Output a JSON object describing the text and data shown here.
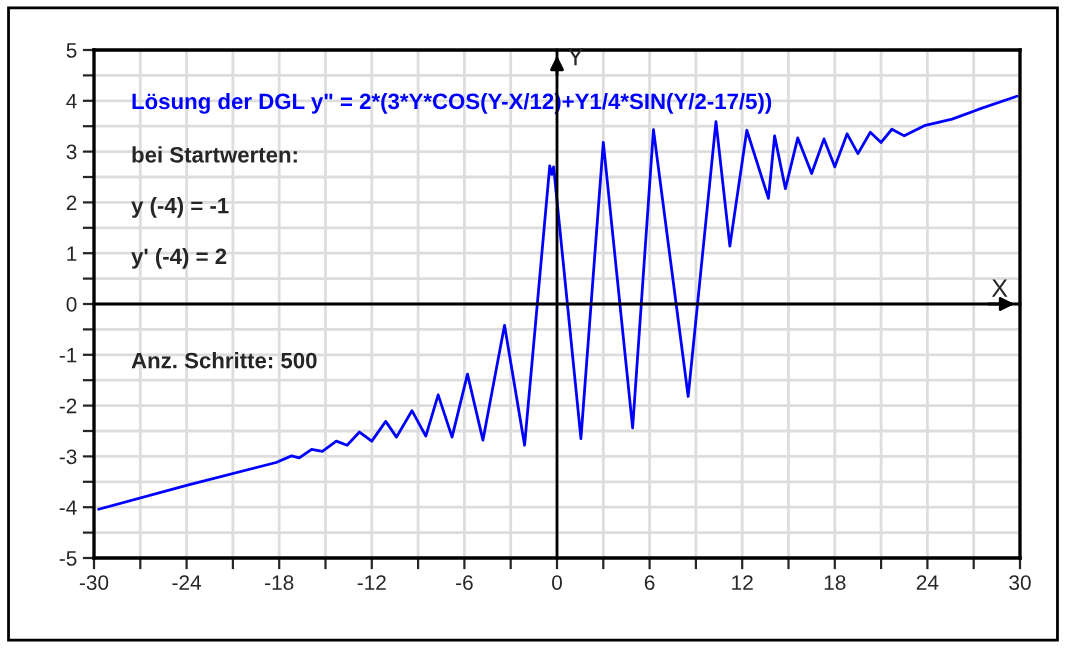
{
  "chart_data": {
    "type": "line",
    "title": "Lösung der DGL y\" = 2*(3*Y*COS(Y-X/12)+Y1/4*SIN(Y/2-17/5))",
    "annotations": [
      "bei Startwerten:",
      "y (-4) = -1",
      "y' (-4) = 2",
      "Anz. Schritte: 500"
    ],
    "series": [
      {
        "color": "#0000ff",
        "x": [
          -29.7,
          -24,
          -18.2,
          -17.2,
          -16.7,
          -15.9,
          -15.2,
          -14.3,
          -13.6,
          -12.8,
          -12.0,
          -11.1,
          -10.4,
          -9.4,
          -8.5,
          -7.7,
          -6.8,
          -5.8,
          -4.8,
          -3.4,
          -2.1,
          -0.47,
          -0.34,
          -0.22,
          1.55,
          3.0,
          4.9,
          6.25,
          8.5,
          10.3,
          11.2,
          12.3,
          13.7,
          14.1,
          14.8,
          15.6,
          16.5,
          17.3,
          18.0,
          18.8,
          19.5,
          20.3,
          21.0,
          21.7,
          22.5,
          23.8,
          25.6,
          27.3,
          29.8
        ],
        "values": [
          -4.04,
          -3.57,
          -3.12,
          -2.99,
          -3.03,
          -2.86,
          -2.9,
          -2.7,
          -2.78,
          -2.52,
          -2.7,
          -2.31,
          -2.62,
          -2.1,
          -2.6,
          -1.79,
          -2.62,
          -1.38,
          -2.68,
          -0.42,
          -2.78,
          2.72,
          2.55,
          2.7,
          -2.65,
          3.18,
          -2.44,
          3.43,
          -1.82,
          3.59,
          1.14,
          3.42,
          2.08,
          3.31,
          2.27,
          3.27,
          2.57,
          3.25,
          2.7,
          3.35,
          2.96,
          3.38,
          3.18,
          3.44,
          3.31,
          3.51,
          3.64,
          3.83,
          4.09
        ]
      }
    ],
    "xlim": [
      -30,
      30
    ],
    "ylim": [
      -5,
      5
    ],
    "xticks": [
      -30,
      {
        "value": -27,
        "label": null
      },
      -24,
      {
        "value": -21,
        "label": null
      },
      -18,
      {
        "value": -15,
        "label": null
      },
      -12,
      {
        "value": -9,
        "label": null
      },
      -6,
      {
        "value": -3,
        "label": null
      },
      0,
      {
        "value": 3,
        "label": null
      },
      6,
      {
        "value": 9,
        "label": null
      },
      12,
      {
        "value": 15,
        "label": null
      },
      18,
      {
        "value": 21,
        "label": null
      },
      24,
      {
        "value": 27,
        "label": null
      },
      30
    ],
    "yticks": [
      -5,
      {
        "value": -4.5,
        "label": null
      },
      -4,
      {
        "value": -3.5,
        "label": null
      },
      -3,
      {
        "value": -2.5,
        "label": null
      },
      -2,
      {
        "value": -1.5,
        "label": null
      },
      -1,
      {
        "value": -0.5,
        "label": null
      },
      0,
      {
        "value": 0.5,
        "label": null
      },
      1,
      {
        "value": 1.5,
        "label": null
      },
      2,
      {
        "value": 2.5,
        "label": null
      },
      3,
      {
        "value": 3.5,
        "label": null
      },
      4,
      {
        "value": 4.5,
        "label": null
      },
      5
    ],
    "xlabel": "X",
    "ylabel": "Y",
    "grid": true,
    "line_style": "solid"
  }
}
